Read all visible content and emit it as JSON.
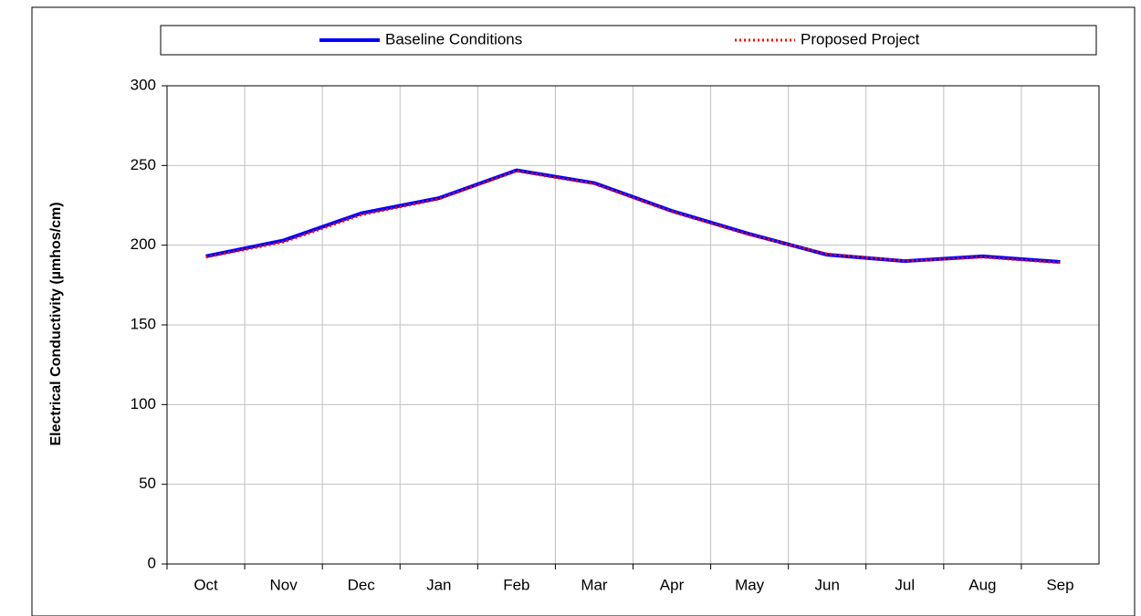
{
  "chart_data": {
    "type": "line",
    "y_label": "Electrical Conductivity (µmhos/cm)",
    "categories": [
      "Oct",
      "Nov",
      "Dec",
      "Jan",
      "Feb",
      "Mar",
      "Apr",
      "May",
      "Jun",
      "Jul",
      "Aug",
      "Sep"
    ],
    "series": [
      {
        "name": "Baseline Conditions",
        "color": "#0000ff",
        "style": "solid",
        "values": [
          193,
          203,
          220,
          229.5,
          247,
          239,
          221.5,
          207,
          194,
          190,
          193,
          189.5
        ]
      },
      {
        "name": "Proposed Project",
        "color": "#ff0000",
        "style": "dotted",
        "values": [
          192.5,
          202,
          219,
          229,
          246.5,
          238.5,
          221,
          206.5,
          194.5,
          190,
          192.5,
          189
        ]
      }
    ],
    "ylim": [
      0,
      300
    ],
    "yticks": [
      0,
      50,
      100,
      150,
      200,
      250,
      300
    ],
    "grid": true,
    "legend": "top"
  }
}
